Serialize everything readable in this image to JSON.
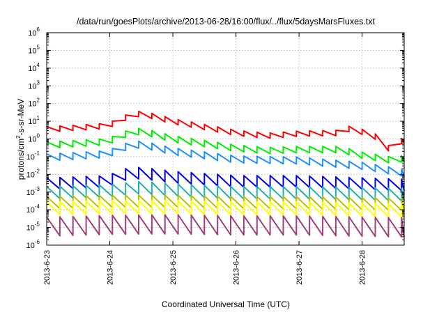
{
  "chart_data": {
    "type": "line",
    "title": "/data/run/goesPlots/archive/2013-06-28/16:00/flux/../flux/5daysMarsFluxes.txt",
    "xlabel": "Coordinated Universal Time (UTC)",
    "ylabel_base": "protons/cm",
    "ylabel_sup": "2",
    "ylabel_rest": "-s-sr-MeV",
    "y_scale": "log",
    "y_tick_base": "10",
    "y_tick_exponents": [
      "-6",
      "-5",
      "-4",
      "-3",
      "-2",
      "-1",
      "0",
      "1",
      "2",
      "3",
      "4",
      "5",
      "6"
    ],
    "ylim": [
      1e-06,
      1000000.0
    ],
    "x_tick_labels": [
      "2013-6-23",
      "2013-6-24",
      "2013-6-25",
      "2013-6-26",
      "2013-6-27",
      "2013-6-28"
    ],
    "xlim": [
      "2013-06-23 00:00",
      "2013-06-28 16:00"
    ],
    "grid": true,
    "legend": "none",
    "sawtooth_period_hours": 5,
    "series": [
      {
        "color": "#ff0000",
        "points": [
          [
            "2013-06-23 00:00",
            3.5
          ],
          [
            "2013-06-24 00:00",
            5.5
          ],
          [
            "2013-06-24 03:00",
            12
          ],
          [
            "2013-06-24 12:00",
            28
          ],
          [
            "2013-06-25 00:00",
            10
          ],
          [
            "2013-06-26 00:00",
            2.2
          ],
          [
            "2013-06-26 12:00",
            1.5
          ],
          [
            "2013-06-27 00:00",
            2.0
          ],
          [
            "2013-06-27 16:00",
            2.2
          ],
          [
            "2013-06-27 18:00",
            4.0
          ],
          [
            "2013-06-28 00:00",
            2.5
          ],
          [
            "2013-06-28 06:00",
            1.2
          ],
          [
            "2013-06-28 10:00",
            0.3
          ],
          [
            "2013-06-28 16:00",
            0.9
          ]
        ],
        "sawtooth_ratio": 2.0
      },
      {
        "color": "#00ee00",
        "points": [
          [
            "2013-06-23 00:00",
            0.45
          ],
          [
            "2013-06-24 00:00",
            0.7
          ],
          [
            "2013-06-24 03:00",
            1.5
          ],
          [
            "2013-06-24 12:00",
            2.8
          ],
          [
            "2013-06-25 00:00",
            1.0
          ],
          [
            "2013-06-26 00:00",
            0.3
          ],
          [
            "2013-06-26 12:00",
            0.22
          ],
          [
            "2013-06-27 00:00",
            0.25
          ],
          [
            "2013-06-27 16:00",
            0.25
          ],
          [
            "2013-06-28 00:00",
            0.12
          ],
          [
            "2013-06-28 12:00",
            0.06
          ],
          [
            "2013-06-28 16:00",
            0.08
          ]
        ],
        "sawtooth_ratio": 2.3
      },
      {
        "color": "#1e90ff",
        "points": [
          [
            "2013-06-23 00:00",
            0.09
          ],
          [
            "2013-06-24 00:00",
            0.14
          ],
          [
            "2013-06-24 03:00",
            0.3
          ],
          [
            "2013-06-24 12:00",
            0.5
          ],
          [
            "2013-06-25 00:00",
            0.2
          ],
          [
            "2013-06-26 00:00",
            0.07
          ],
          [
            "2013-06-27 00:00",
            0.06
          ],
          [
            "2013-06-28 00:00",
            0.03
          ],
          [
            "2013-06-28 16:00",
            0.012
          ]
        ],
        "sawtooth_ratio": 2.5
      },
      {
        "color": "#0000ee",
        "points": [
          [
            "2013-06-23 00:00",
            0.003
          ],
          [
            "2013-06-24 00:00",
            0.004
          ],
          [
            "2013-06-24 03:00",
            0.009
          ],
          [
            "2013-06-24 12:00",
            0.012
          ],
          [
            "2013-06-25 00:00",
            0.007
          ],
          [
            "2013-06-26 00:00",
            0.004
          ],
          [
            "2013-06-27 00:00",
            0.004
          ],
          [
            "2013-06-28 00:00",
            0.003
          ],
          [
            "2013-06-28 16:00",
            0.0025
          ]
        ],
        "sawtooth_ratio": 4.5
      },
      {
        "color": "#20b2aa",
        "points": [
          [
            "2013-06-23 00:00",
            0.0009
          ],
          [
            "2013-06-24 00:00",
            0.0012
          ],
          [
            "2013-06-24 12:00",
            0.0018
          ],
          [
            "2013-06-25 00:00",
            0.0013
          ],
          [
            "2013-06-26 00:00",
            0.0009
          ],
          [
            "2013-06-27 00:00",
            0.0009
          ],
          [
            "2013-06-28 00:00",
            0.0008
          ],
          [
            "2013-06-28 16:00",
            0.0007
          ]
        ],
        "sawtooth_ratio": 5.0
      },
      {
        "color": "#bdbd00",
        "points": [
          [
            "2013-06-23 00:00",
            0.00025
          ],
          [
            "2013-06-24 00:00",
            0.0003
          ],
          [
            "2013-06-25 00:00",
            0.0003
          ],
          [
            "2013-06-26 00:00",
            0.00025
          ],
          [
            "2013-06-27 00:00",
            0.00025
          ],
          [
            "2013-06-28 00:00",
            0.00022
          ],
          [
            "2013-06-28 16:00",
            0.0002
          ]
        ],
        "sawtooth_ratio": 5.0
      },
      {
        "color": "#ffff00",
        "points": [
          [
            "2013-06-23 00:00",
            0.00012
          ],
          [
            "2013-06-24 00:00",
            0.00014
          ],
          [
            "2013-06-25 00:00",
            0.00014
          ],
          [
            "2013-06-26 00:00",
            0.00012
          ],
          [
            "2013-06-27 00:00",
            0.00012
          ],
          [
            "2013-06-28 00:00",
            0.0001
          ],
          [
            "2013-06-28 16:00",
            9e-05
          ]
        ],
        "sawtooth_ratio": 5.5
      },
      {
        "color": "#a0407a",
        "points": [
          [
            "2013-06-23 00:00",
            1.1e-05
          ],
          [
            "2013-06-24 00:00",
            1.4e-05
          ],
          [
            "2013-06-25 00:00",
            1.5e-05
          ],
          [
            "2013-06-26 00:00",
            1.3e-05
          ],
          [
            "2013-06-27 00:00",
            1.3e-05
          ],
          [
            "2013-06-28 00:00",
            1.1e-05
          ],
          [
            "2013-06-28 16:00",
            1e-05
          ]
        ],
        "sawtooth_ratio": 12.0
      }
    ]
  }
}
